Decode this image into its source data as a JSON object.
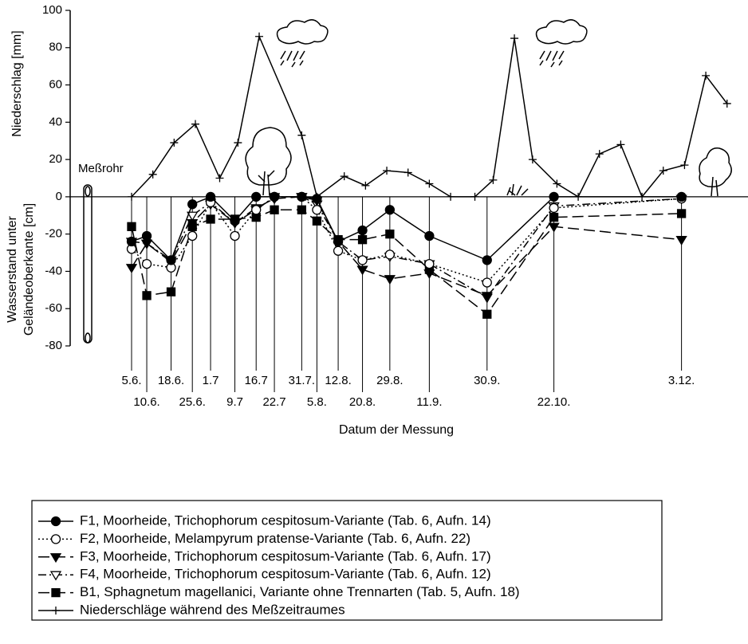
{
  "chart_data": {
    "type": "line",
    "y_label_top": "Niederschlag [mm]",
    "y_label_bottom": [
      "Wasserstand unter",
      "Geländeoberkante [cm]"
    ],
    "x_label": "Datum der Messung",
    "annotation": "Meßrohr",
    "categories": [
      "5.6.",
      "10.6.",
      "18.6.",
      "25.6.",
      "1.7",
      "9.7",
      "16.7",
      "22.7",
      "31.7.",
      "5.8.",
      "12.8.",
      "20.8.",
      "29.8.",
      "11.9.",
      "30.9.",
      "22.10.",
      "3.12."
    ],
    "ylim": [
      -80,
      100
    ],
    "yticks": [
      -80,
      -60,
      -40,
      -20,
      0,
      20,
      40,
      60,
      80,
      100
    ],
    "series": [
      {
        "name": "F1, Moorheide, Trichophorum cespitosum-Variante (Tab. 6, Aufn. 14)",
        "color": "#000000",
        "marker": "circle-filled",
        "line_style": "solid",
        "values": [
          -24,
          -21,
          -34,
          -4,
          0,
          -13,
          0,
          0,
          0,
          -1,
          -24,
          -18,
          -7,
          -21,
          -34,
          0,
          0
        ]
      },
      {
        "name": "F2, Moorheide, Melampyrum pratense-Variante (Tab. 6, Aufn. 22)",
        "color": "#000000",
        "marker": "circle-open",
        "line_style": "dotted",
        "values": [
          -28,
          -36,
          -38,
          -21,
          -3,
          -21,
          -7,
          0,
          0,
          -7,
          -29,
          -34,
          -31,
          -36,
          -46,
          -6,
          -1
        ]
      },
      {
        "name": "F3, Moorheide, Trichophorum cespitosum-Variante (Tab. 6, Aufn. 17)",
        "color": "#000000",
        "marker": "triangle-filled",
        "line_style": "long-dash",
        "values": [
          -38,
          -25,
          -35,
          -14,
          -4,
          -14,
          -6,
          -1,
          0,
          -2,
          -24,
          -39,
          -44,
          -41,
          -53,
          -16,
          -23
        ]
      },
      {
        "name": "F4, Moorheide, Trichophorum cespitosum-Variante (Tab. 6, Aufn. 12)",
        "color": "#000000",
        "marker": "triangle-open",
        "line_style": "dash-dot",
        "values": [
          -24,
          -25,
          -34,
          -10,
          -3,
          -14,
          -7,
          0,
          0,
          -4,
          -24,
          -34,
          -32,
          -36,
          -54,
          -5,
          -1
        ]
      },
      {
        "name": "B1, Sphagnetum magellanici, Variante ohne Trennarten (Tab. 5, Aufn. 18)",
        "color": "#000000",
        "marker": "square-filled",
        "line_style": "long-dash",
        "values": [
          -16,
          -53,
          -51,
          -16,
          -12,
          -12,
          -11,
          -7,
          -7,
          -13,
          -23,
          -23,
          -20,
          -39,
          -63,
          -11,
          -9
        ]
      },
      {
        "name": "Niederschläge während des Meßzeitraumes",
        "color": "#000000",
        "marker": "plus",
        "line_style": "solid",
        "x": [
          "5.6.",
          "12.6.",
          "19.6.",
          "26.6.",
          "4.7.",
          "10.7.",
          "17.7.",
          "31.7.",
          "5.8.",
          "14.8.",
          "21.8.",
          "28.8.",
          "4.9.",
          "11.9.",
          "18.9.",
          "26.9.",
          "2.10.",
          "9.10.",
          "15.10.",
          "23.10.",
          "30.10.",
          "6.11.",
          "13.11.",
          "20.11.",
          "27.11.",
          "4.12.",
          "11.12.",
          "18.12."
        ],
        "values": [
          0,
          12,
          29,
          39,
          10,
          29,
          86,
          33,
          0,
          11,
          6,
          14,
          13,
          7,
          0,
          0,
          9,
          85,
          20,
          7,
          0,
          23,
          28,
          0,
          14,
          17,
          65,
          50
        ]
      }
    ]
  }
}
